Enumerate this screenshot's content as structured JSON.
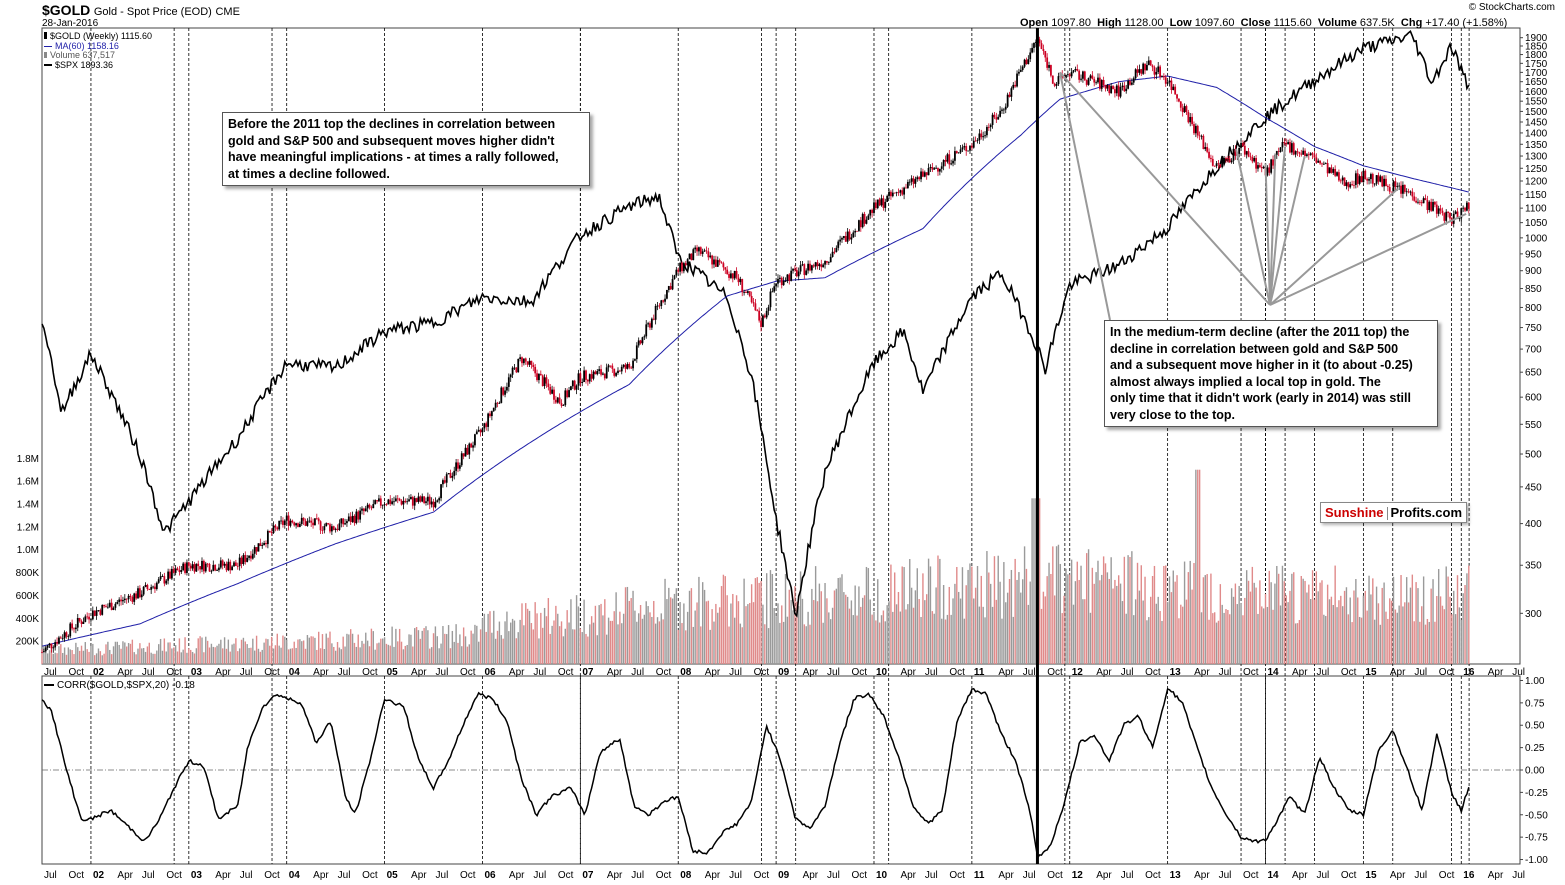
{
  "header": {
    "symbol": "$GOLD",
    "name": "Gold - Spot Price (EOD)",
    "exchange": "CME",
    "date": "28-Jan-2016",
    "source": "© StockCharts.com",
    "ohlc": {
      "open_label": "Open",
      "open": "1097.80",
      "high_label": "High",
      "high": "1128.00",
      "low_label": "Low",
      "low": "1097.60",
      "close_label": "Close",
      "close": "1115.60",
      "volume_label": "Volume",
      "volume": "637.5K",
      "chg_label": "Chg",
      "chg": "+17.40 (+1.58%)"
    }
  },
  "legend": [
    {
      "label": "$GOLD (Weekly) 1115.60",
      "color": "#000000",
      "swatch": "candle-icon"
    },
    {
      "label": "MA(60) 1158.16",
      "color": "#1f1fa8",
      "swatch": "line-icon"
    },
    {
      "label": "Volume 637,517",
      "color": "#777777",
      "swatch": "bar-icon"
    },
    {
      "label": "$SPX 1893.36",
      "color": "#000000",
      "swatch": "line-icon"
    }
  ],
  "annotations": {
    "left": [
      "Before the 2011 top the declines in correlation between",
      "gold and S&P 500 and subsequent moves higher didn't",
      "have meaningful implications - at times a rally followed,",
      "at times a decline followed."
    ],
    "right": [
      "In the medium-term decline (after the 2011 top) the",
      "decline in correlation between gold and S&P 500",
      "and a subsequent move higher in it (to about -0.25)",
      "almost always implied a local top in gold. The",
      "only time that it didn't work (early in 2014) was still",
      "very close to the top."
    ]
  },
  "brand": {
    "part1": "Sunshine",
    "part2": "Profits.com",
    "color1": "#cc0000"
  },
  "lower_panel": {
    "label": "CORR($GOLD,$SPX,20) -0.18"
  },
  "chart_data": [
    {
      "type": "line",
      "x_axis_labels": [
        "Jul",
        "Oct",
        "02",
        "Apr",
        "Jul",
        "Oct",
        "03",
        "Apr",
        "Jul",
        "Oct",
        "04",
        "Apr",
        "Jul",
        "Oct",
        "05",
        "Apr",
        "Jul",
        "Oct",
        "06",
        "Apr",
        "Jul",
        "Oct",
        "07",
        "Apr",
        "Jul",
        "Oct",
        "08",
        "Apr",
        "Jul",
        "Oct",
        "09",
        "Apr",
        "Jul",
        "Oct",
        "10",
        "Apr",
        "Jul",
        "Oct",
        "11",
        "Apr",
        "Jul",
        "Oct",
        "12",
        "Apr",
        "Jul",
        "Oct",
        "13",
        "Apr",
        "Jul",
        "Oct",
        "14",
        "Apr",
        "Jul",
        "Oct",
        "15",
        "Apr",
        "Jul",
        "Oct",
        "16",
        "Apr",
        "Jul"
      ],
      "y_price_ticks": [
        300,
        350,
        400,
        450,
        500,
        550,
        600,
        650,
        700,
        750,
        800,
        850,
        900,
        950,
        1000,
        1050,
        1100,
        1150,
        1200,
        1250,
        1300,
        1350,
        1400,
        1450,
        1500,
        1550,
        1600,
        1650,
        1700,
        1750,
        1800,
        1850,
        1900
      ],
      "y_price_scale": "log",
      "y_volume_ticks": [
        "200K",
        "400K",
        "600K",
        "800K",
        "1.0M",
        "1.2M",
        "1.4M",
        "1.6M",
        "1.8M"
      ],
      "series": [
        {
          "name": "$GOLD (Weekly)",
          "style": "candle",
          "x": [
            2001.5,
            2002.0,
            2002.5,
            2003.0,
            2003.5,
            2004.0,
            2004.5,
            2005.0,
            2005.5,
            2006.0,
            2006.4,
            2006.8,
            2007.0,
            2007.5,
            2008.0,
            2008.2,
            2008.6,
            2008.85,
            2009.0,
            2009.5,
            2010.0,
            2010.5,
            2011.0,
            2011.3,
            2011.67,
            2011.85,
            2012.0,
            2012.5,
            2012.8,
            2013.0,
            2013.3,
            2013.5,
            2013.75,
            2014.0,
            2014.2,
            2014.5,
            2014.8,
            2015.0,
            2015.5,
            2015.9,
            2016.08
          ],
          "y": [
            265,
            300,
            320,
            350,
            350,
            405,
            395,
            430,
            430,
            540,
            680,
            590,
            640,
            660,
            900,
            960,
            880,
            760,
            870,
            930,
            1100,
            1220,
            1350,
            1500,
            1890,
            1640,
            1700,
            1600,
            1750,
            1660,
            1400,
            1250,
            1340,
            1230,
            1350,
            1290,
            1190,
            1220,
            1150,
            1060,
            1115
          ]
        },
        {
          "name": "MA(60)",
          "style": "line",
          "color": "#1f1fa8",
          "x": [
            2001.5,
            2002.5,
            2003.5,
            2004.5,
            2005.5,
            2006.5,
            2007.5,
            2008.5,
            2009.0,
            2009.5,
            2010.5,
            2011.5,
            2011.9,
            2012.5,
            2013.0,
            2013.5,
            2014.0,
            2014.5,
            2015.0,
            2015.5,
            2016.08
          ],
          "y": [
            270,
            290,
            330,
            375,
            415,
            520,
            625,
            830,
            870,
            880,
            1030,
            1390,
            1560,
            1650,
            1680,
            1620,
            1470,
            1340,
            1260,
            1210,
            1158
          ]
        },
        {
          "name": "$SPX",
          "style": "line",
          "color": "#000000",
          "x": [
            2001.5,
            2001.7,
            2002.0,
            2002.5,
            2002.75,
            2003.0,
            2003.5,
            2004.0,
            2004.5,
            2005.0,
            2005.5,
            2006.0,
            2006.5,
            2007.0,
            2007.5,
            2007.8,
            2008.0,
            2008.5,
            2008.75,
            2009.0,
            2009.2,
            2009.5,
            2010.0,
            2010.3,
            2010.5,
            2011.0,
            2011.3,
            2011.6,
            2011.75,
            2012.0,
            2012.5,
            2013.0,
            2013.5,
            2014.0,
            2014.5,
            2015.0,
            2015.5,
            2015.7,
            2015.9,
            2016.08
          ],
          "y": [
            1230,
            1030,
            1150,
            950,
            820,
            870,
            980,
            1130,
            1120,
            1200,
            1220,
            1280,
            1270,
            1440,
            1520,
            1550,
            1380,
            1280,
            1100,
            840,
            700,
            920,
            1130,
            1200,
            1070,
            1280,
            1340,
            1200,
            1120,
            1310,
            1360,
            1460,
            1640,
            1800,
            1930,
            2050,
            2100,
            1920,
            2060,
            1893
          ]
        }
      ]
    },
    {
      "type": "line",
      "title": "CORR($GOLD,$SPX,20)",
      "y_ticks": [
        -1.0,
        -0.75,
        -0.5,
        -0.25,
        0.0,
        0.25,
        0.5,
        0.75,
        1.0
      ],
      "y_tick_labels": [
        "-1.00",
        "-0.75",
        "-0.50",
        "-0.25",
        "0.00",
        "0.25",
        "0.50",
        "0.75",
        "1.00"
      ],
      "ylim": [
        -1.05,
        1.05
      ],
      "series": [
        {
          "name": "CORR($GOLD,$SPX,20)",
          "x": [
            2001.5,
            2001.6,
            2001.75,
            2001.9,
            2002.0,
            2002.2,
            2002.4,
            2002.55,
            2002.7,
            2002.85,
            2003.0,
            2003.15,
            2003.3,
            2003.5,
            2003.6,
            2003.75,
            2003.9,
            2004.0,
            2004.15,
            2004.3,
            2004.45,
            2004.6,
            2004.7,
            2004.85,
            2005.0,
            2005.2,
            2005.35,
            2005.5,
            2005.65,
            2005.8,
            2005.95,
            2006.1,
            2006.25,
            2006.4,
            2006.55,
            2006.7,
            2006.9,
            2007.05,
            2007.2,
            2007.4,
            2007.55,
            2007.7,
            2007.85,
            2008.0,
            2008.15,
            2008.3,
            2008.45,
            2008.6,
            2008.75,
            2008.9,
            2009.05,
            2009.2,
            2009.35,
            2009.5,
            2009.65,
            2009.8,
            2009.95,
            2010.1,
            2010.25,
            2010.4,
            2010.55,
            2010.7,
            2010.85,
            2011.0,
            2011.15,
            2011.3,
            2011.45,
            2011.6,
            2011.67,
            2011.8,
            2011.95,
            2012.1,
            2012.25,
            2012.4,
            2012.55,
            2012.7,
            2012.85,
            2013.0,
            2013.15,
            2013.3,
            2013.45,
            2013.6,
            2013.75,
            2013.9,
            2014.0,
            2014.1,
            2014.25,
            2014.4,
            2014.55,
            2014.7,
            2014.85,
            2015.0,
            2015.15,
            2015.3,
            2015.45,
            2015.6,
            2015.75,
            2015.9,
            2016.0,
            2016.08
          ],
          "y": [
            0.8,
            0.65,
            0.0,
            -0.55,
            -0.55,
            -0.45,
            -0.65,
            -0.8,
            -0.55,
            -0.2,
            0.1,
            0.05,
            -0.55,
            -0.4,
            0.25,
            0.7,
            0.85,
            0.8,
            0.75,
            0.3,
            0.55,
            -0.3,
            -0.5,
            0.1,
            0.8,
            0.7,
            0.1,
            -0.2,
            0.1,
            0.5,
            0.85,
            0.8,
            0.55,
            -0.1,
            -0.5,
            -0.3,
            -0.2,
            -0.5,
            0.2,
            0.35,
            -0.4,
            -0.5,
            -0.35,
            -0.3,
            -0.9,
            -0.93,
            -0.7,
            -0.6,
            -0.35,
            0.5,
            0.1,
            -0.55,
            -0.65,
            -0.4,
            0.3,
            0.8,
            0.85,
            0.6,
            0.15,
            -0.4,
            -0.6,
            -0.45,
            0.55,
            0.9,
            0.85,
            0.4,
            0.1,
            -0.5,
            -0.98,
            -0.85,
            -0.35,
            0.3,
            0.4,
            0.1,
            0.5,
            0.6,
            0.25,
            0.92,
            0.75,
            0.25,
            -0.2,
            -0.5,
            -0.75,
            -0.8,
            -0.78,
            -0.6,
            -0.3,
            -0.5,
            0.15,
            -0.2,
            -0.45,
            -0.5,
            0.2,
            0.45,
            0.0,
            -0.45,
            0.4,
            -0.25,
            -0.45,
            -0.18
          ]
        }
      ]
    }
  ]
}
